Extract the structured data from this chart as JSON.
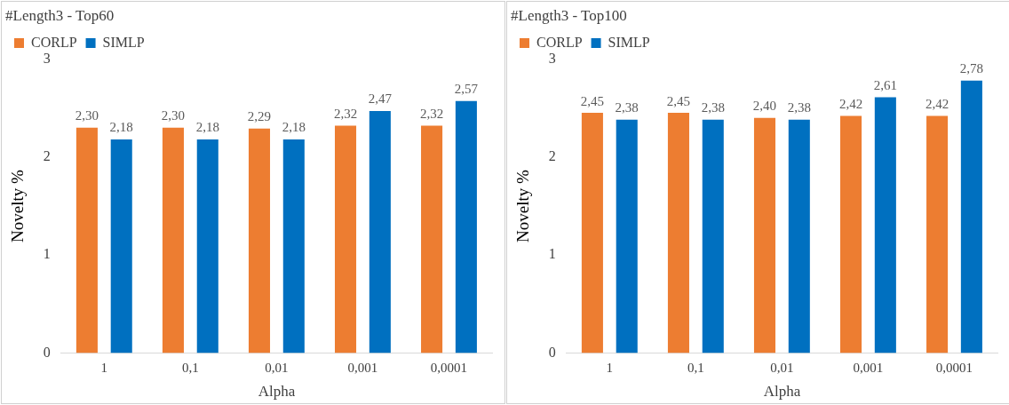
{
  "chart_data": [
    {
      "type": "bar",
      "title": "#Length3 - Top60",
      "xlabel": "Alpha",
      "ylabel": "Novelty %",
      "categories": [
        "1",
        "0,1",
        "0,01",
        "0,001",
        "0,0001"
      ],
      "series": [
        {
          "name": "CORLP",
          "color": "#ed7d31",
          "values": [
            2.3,
            2.3,
            2.29,
            2.32,
            2.32
          ],
          "value_labels": [
            "2,30",
            "2,30",
            "2,29",
            "2,32",
            "2,32"
          ]
        },
        {
          "name": "SIMLP",
          "color": "#0070c0",
          "values": [
            2.18,
            2.18,
            2.18,
            2.47,
            2.57
          ],
          "value_labels": [
            "2,18",
            "2,18",
            "2,18",
            "2,47",
            "2,57"
          ]
        }
      ],
      "ylim": [
        0,
        3
      ],
      "yticks": [
        0,
        1,
        2,
        3
      ],
      "grid": false,
      "legend": "top left"
    },
    {
      "type": "bar",
      "title": "#Length3 - Top100",
      "xlabel": "Alpha",
      "ylabel": "Novelty %",
      "categories": [
        "1",
        "0,1",
        "0,01",
        "0,001",
        "0,0001"
      ],
      "series": [
        {
          "name": "CORLP",
          "color": "#ed7d31",
          "values": [
            2.45,
            2.45,
            2.4,
            2.42,
            2.42
          ],
          "value_labels": [
            "2,45",
            "2,45",
            "2,40",
            "2,42",
            "2,42"
          ]
        },
        {
          "name": "SIMLP",
          "color": "#0070c0",
          "values": [
            2.38,
            2.38,
            2.38,
            2.61,
            2.78
          ],
          "value_labels": [
            "2,38",
            "2,38",
            "2,38",
            "2,61",
            "2,78"
          ]
        }
      ],
      "ylim": [
        0,
        3
      ],
      "yticks": [
        0,
        1,
        2,
        3
      ],
      "grid": false,
      "legend": "top left"
    }
  ]
}
